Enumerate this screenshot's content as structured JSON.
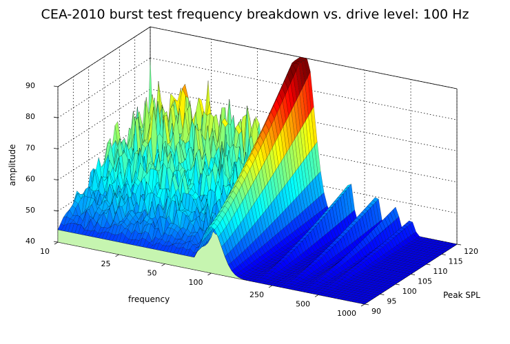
{
  "chart_data": {
    "type": "surface3d",
    "title": "CEA-2010 burst test frequency breakdown vs. drive level: 100 Hz",
    "xlabel": "frequency",
    "ylabel": "Peak SPL",
    "zlabel": "amplitude",
    "x_ticks": [
      "10",
      "25",
      "50",
      "100",
      "250",
      "500",
      "1000"
    ],
    "y_ticks": [
      "90",
      "95",
      "100",
      "105",
      "110",
      "115",
      "120"
    ],
    "z_ticks": [
      "40",
      "50",
      "60",
      "70",
      "80",
      "90"
    ],
    "x_range": [
      10,
      1000
    ],
    "y_range": [
      90,
      120
    ],
    "z_range": [
      40,
      90
    ],
    "x_scale": "log",
    "grid": true,
    "colormap": "jet",
    "fundamental_frequency": 100,
    "fundamental_peak_amplitude_at_max_drive": 92,
    "series": [
      {
        "peak_spl": 90,
        "fundamental_amplitude": 55
      },
      {
        "peak_spl": 95,
        "fundamental_amplitude": 60
      },
      {
        "peak_spl": 100,
        "fundamental_amplitude": 65
      },
      {
        "peak_spl": 105,
        "fundamental_amplitude": 72
      },
      {
        "peak_spl": 110,
        "fundamental_amplitude": 79
      },
      {
        "peak_spl": 115,
        "fundamental_amplitude": 86
      },
      {
        "peak_spl": 117,
        "fundamental_amplitude": 92
      }
    ]
  }
}
